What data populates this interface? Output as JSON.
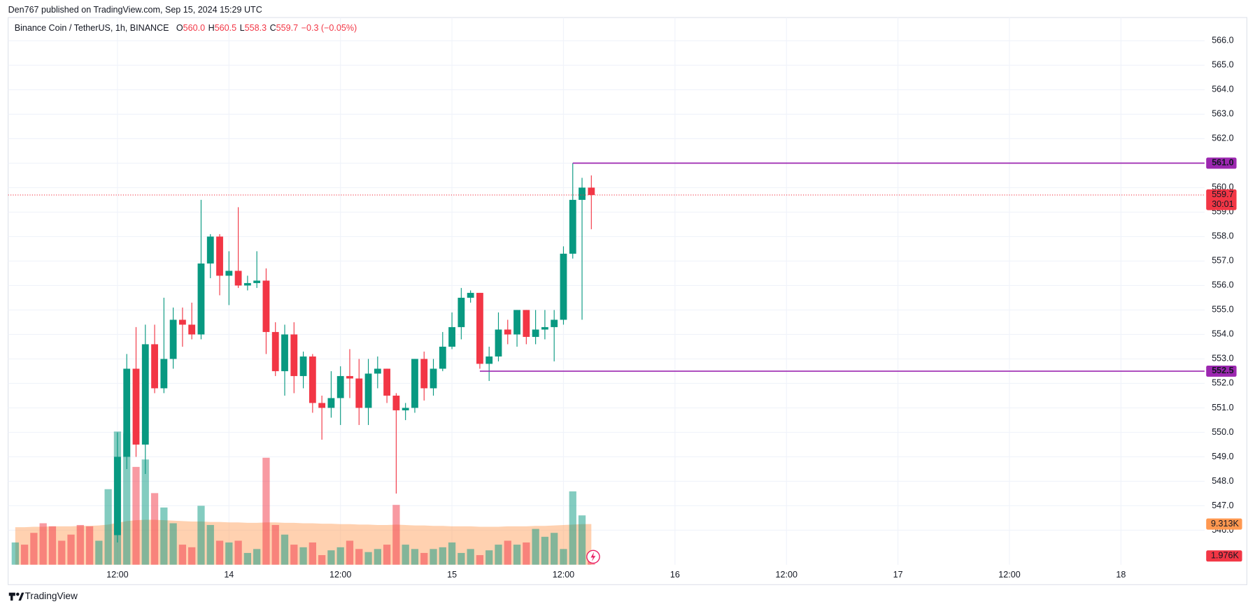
{
  "header": {
    "publisher": "Den767 published on TradingView.com, Sep 15, 2024 15:29 UTC",
    "footer": "TradingView"
  },
  "chart_data": {
    "type": "candlestick",
    "symbol": "Binance Coin / TetherUS, 1h, BINANCE",
    "legend": [
      {
        "label": "O",
        "value": "560.0"
      },
      {
        "label": "H",
        "value": "560.5"
      },
      {
        "label": "L",
        "value": "558.3"
      },
      {
        "label": "C",
        "value": "559.7"
      }
    ],
    "change": "−0.3 (−0.05%)",
    "up_color": "#089981",
    "down_color": "#f23645",
    "open": [
      null,
      null,
      null,
      null,
      null,
      null,
      null,
      null,
      null,
      null,
      null,
      545.8,
      549.0,
      552.6,
      549.5,
      553.6,
      551.8,
      553.0,
      554.6,
      554.4,
      554.0,
      556.9,
      558.0,
      556.4,
      556.6,
      556.0,
      556.1,
      556.2,
      554.1,
      552.5,
      554.0,
      552.3,
      553.1,
      551.2,
      551.0,
      551.4,
      552.3,
      552.2,
      551.0,
      552.4,
      552.6,
      551.5,
      550.9,
      551.0,
      553.0,
      551.8,
      552.6,
      553.5,
      554.3,
      555.5,
      555.7,
      552.8,
      553.1,
      554.2,
      554.0,
      555.0,
      553.9,
      554.2,
      554.3,
      554.6,
      557.3,
      559.5,
      560.0
    ],
    "high": [
      null,
      null,
      null,
      null,
      null,
      null,
      null,
      null,
      null,
      null,
      null,
      550.0,
      553.2,
      554.3,
      554.4,
      554.4,
      555.5,
      555.1,
      555.1,
      555.3,
      559.5,
      558.1,
      558.1,
      557.4,
      559.2,
      556.4,
      557.4,
      556.7,
      554.5,
      554.4,
      554.5,
      553.3,
      553.2,
      551.5,
      552.5,
      552.7,
      553.4,
      553.0,
      553.0,
      553.1,
      552.6,
      551.6,
      551.2,
      553.0,
      553.3,
      553.0,
      554.1,
      554.9,
      555.9,
      555.8,
      555.7,
      553.5,
      554.9,
      554.6,
      555.0,
      555.0,
      555.0,
      555.0,
      555.0,
      557.6,
      561.0,
      560.4,
      560.5
    ],
    "low": [
      null,
      null,
      null,
      null,
      null,
      null,
      null,
      null,
      null,
      null,
      null,
      545.5,
      548.5,
      549.0,
      548.3,
      551.6,
      551.6,
      552.6,
      553.5,
      553.8,
      553.8,
      556.3,
      555.6,
      555.2,
      555.9,
      555.8,
      555.9,
      553.2,
      552.3,
      551.5,
      551.6,
      551.8,
      550.8,
      549.7,
      550.6,
      550.3,
      551.4,
      550.3,
      550.3,
      551.8,
      551.2,
      547.5,
      550.5,
      550.8,
      551.3,
      551.5,
      552.5,
      553.4,
      553.8,
      555.3,
      552.6,
      552.1,
      552.9,
      553.6,
      553.5,
      553.6,
      553.6,
      553.8,
      552.9,
      554.4,
      557.1,
      554.6,
      558.3
    ],
    "close": [
      null,
      null,
      null,
      null,
      null,
      null,
      null,
      null,
      null,
      null,
      null,
      549.0,
      552.6,
      549.5,
      553.6,
      551.8,
      553.0,
      554.6,
      554.4,
      554.0,
      556.9,
      558.0,
      556.4,
      556.6,
      556.0,
      556.1,
      556.2,
      554.1,
      552.5,
      554.0,
      552.3,
      553.1,
      551.2,
      551.0,
      551.4,
      552.3,
      552.2,
      551.0,
      552.4,
      552.6,
      551.5,
      550.9,
      551.0,
      553.0,
      551.8,
      552.6,
      553.5,
      554.3,
      555.5,
      555.7,
      552.8,
      553.1,
      554.2,
      554.0,
      555.0,
      553.9,
      554.2,
      554.3,
      554.6,
      557.3,
      559.5,
      560.0,
      559.7
    ],
    "volume": {
      "values": [
        5.1,
        4.6,
        7.3,
        9.5,
        8.8,
        5.5,
        6.9,
        9.1,
        8.8,
        5.5,
        17.3,
        30.5,
        30.1,
        22.4,
        24.1,
        16.4,
        13.1,
        9.5,
        4.6,
        4.0,
        13.5,
        9.1,
        5.5,
        5.1,
        5.5,
        2.7,
        3.6,
        24.5,
        9.1,
        6.9,
        4.6,
        4.0,
        5.1,
        2.2,
        3.3,
        4.0,
        5.5,
        3.6,
        2.9,
        3.6,
        4.6,
        13.7,
        4.6,
        3.6,
        2.7,
        3.6,
        4.0,
        5.1,
        2.7,
        3.6,
        2.2,
        3.3,
        4.6,
        5.5,
        4.6,
        5.1,
        8.2,
        6.4,
        7.3,
        3.6,
        16.8,
        11.3,
        1.976
      ],
      "value_labels": [
        null,
        null,
        null,
        null,
        null,
        null,
        null,
        null,
        null,
        null,
        null,
        null,
        null,
        null,
        null,
        null,
        null,
        null,
        null,
        null,
        null,
        null,
        null,
        null,
        null,
        null,
        null,
        null,
        null,
        null,
        null,
        null,
        null,
        null,
        null,
        null,
        null,
        null,
        null,
        null,
        null,
        null,
        null,
        null,
        null,
        null,
        null,
        null,
        null,
        null,
        null,
        null,
        null,
        null,
        null,
        null,
        null,
        null,
        null,
        null,
        null,
        null,
        "1.976K"
      ],
      "side": [
        "up",
        "down",
        "down",
        "down",
        "down",
        "down",
        "down",
        "down",
        "down",
        "up",
        "up",
        "up",
        "up",
        "down",
        "up",
        "down",
        "up",
        "up",
        "down",
        "down",
        "up",
        "up",
        "down",
        "up",
        "down",
        "up",
        "up",
        "down",
        "down",
        "up",
        "down",
        "up",
        "down",
        "down",
        "up",
        "up",
        "down",
        "down",
        "up",
        "up",
        "down",
        "down",
        "up",
        "up",
        "down",
        "up",
        "up",
        "up",
        "up",
        "up",
        "down",
        "up",
        "up",
        "down",
        "up",
        "down",
        "up",
        "up",
        "up",
        "up",
        "up",
        "up",
        "down"
      ],
      "ma": [
        8.6,
        8.6,
        8.7,
        8.7,
        8.8,
        8.8,
        8.8,
        8.9,
        8.9,
        9.0,
        9.2,
        9.6,
        10.0,
        10.2,
        10.3,
        10.3,
        10.2,
        10.1,
        10.0,
        9.9,
        9.9,
        9.8,
        9.8,
        9.7,
        9.7,
        9.6,
        9.6,
        9.7,
        9.7,
        9.6,
        9.6,
        9.5,
        9.5,
        9.4,
        9.4,
        9.3,
        9.3,
        9.2,
        9.2,
        9.1,
        9.1,
        9.2,
        9.1,
        9.0,
        9.0,
        8.9,
        8.9,
        8.8,
        8.8,
        8.8,
        8.7,
        8.7,
        8.7,
        8.8,
        8.8,
        8.8,
        8.9,
        8.9,
        9.0,
        9.1,
        9.2,
        9.3,
        9.313
      ],
      "ma_label": "9.313K",
      "ma_color": "#ff9850"
    },
    "levels": [
      {
        "value": 561.0,
        "label": "561.0",
        "start_x": 60
      },
      {
        "value": 552.5,
        "label": "552.5",
        "start_x": 50
      }
    ],
    "level_color": "#9c27b0",
    "countdown": "30:01",
    "xlim": [
      -0.77,
      128.0
    ],
    "xticks": [
      {
        "value": 11,
        "label": "12:00"
      },
      {
        "value": 23,
        "label": "14"
      },
      {
        "value": 35,
        "label": "12:00"
      },
      {
        "value": 47,
        "label": "15"
      },
      {
        "value": 59,
        "label": "12:00"
      },
      {
        "value": 71,
        "label": "16"
      },
      {
        "value": 83,
        "label": "12:00"
      },
      {
        "value": 95,
        "label": "17"
      },
      {
        "value": 107,
        "label": "12:00"
      },
      {
        "value": 119,
        "label": "18"
      }
    ],
    "ylim": [
      544.59,
      566.95
    ],
    "yticks": [
      {
        "value": 546,
        "label": "546.0"
      },
      {
        "value": 547,
        "label": "547.0"
      },
      {
        "value": 548,
        "label": "548.0"
      },
      {
        "value": 549,
        "label": "549.0"
      },
      {
        "value": 550,
        "label": "550.0"
      },
      {
        "value": 551,
        "label": "551.0"
      },
      {
        "value": 552,
        "label": "552.0"
      },
      {
        "value": 553,
        "label": "553.0"
      },
      {
        "value": 554,
        "label": "554.0"
      },
      {
        "value": 555,
        "label": "555.0"
      },
      {
        "value": 556,
        "label": "556.0"
      },
      {
        "value": 557,
        "label": "557.0"
      },
      {
        "value": 558,
        "label": "558.0"
      },
      {
        "value": 559,
        "label": "559.0"
      },
      {
        "value": 560,
        "label": "560.0"
      },
      {
        "value": 561,
        "label": "561.0"
      },
      {
        "value": 562,
        "label": "562.0"
      },
      {
        "value": 563,
        "label": "563.0"
      },
      {
        "value": 564,
        "label": "564.0"
      },
      {
        "value": 565,
        "label": "565.0"
      },
      {
        "value": 566,
        "label": "566.0"
      }
    ],
    "grid": true
  }
}
